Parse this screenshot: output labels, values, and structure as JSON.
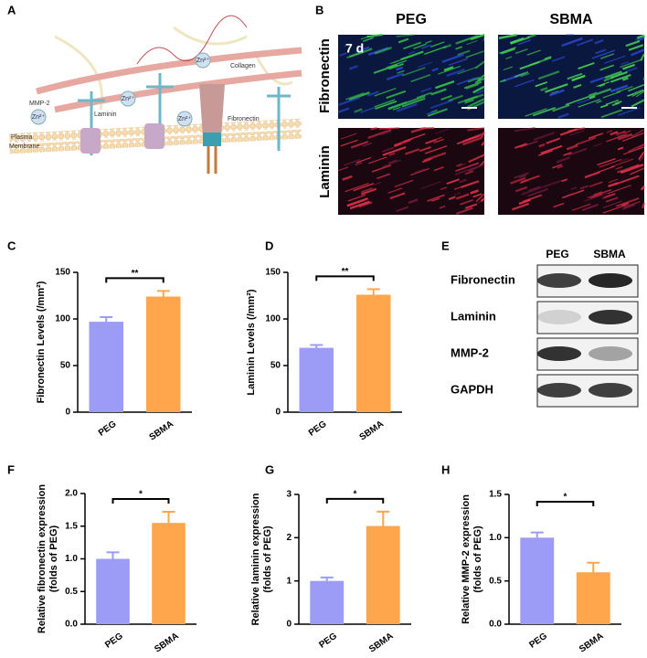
{
  "panels": {
    "A": {
      "label": "A",
      "mmp": "MMP-2",
      "laminin": "Laminin",
      "collagen": "Collagen",
      "fibronectin": "Fibronectin",
      "membrane": [
        "Plasma",
        "Membrane"
      ],
      "ion": "Zn²⁺"
    },
    "B": {
      "label": "B",
      "columns": [
        "PEG",
        "SBMA"
      ],
      "rows": [
        "Fibronectin",
        "Laminin"
      ],
      "time": "7 d"
    },
    "E": {
      "label": "E",
      "columns": [
        "PEG",
        "SBMA"
      ],
      "rows": [
        "Fibronectin",
        "Laminin",
        "MMP-2",
        "GAPDH"
      ]
    }
  },
  "chart_data": [
    {
      "type": "bar",
      "panel": "C",
      "ylabel": [
        "Fibronectin Levels (/mm²)"
      ],
      "categories": [
        "PEG",
        "SBMA"
      ],
      "values": [
        97,
        124
      ],
      "errors": [
        5,
        6
      ],
      "colors": [
        "#9c9cf7",
        "#ffa64d"
      ],
      "ylim": [
        0,
        150
      ],
      "yticks": [
        0,
        50,
        100,
        150
      ],
      "significance": "**"
    },
    {
      "type": "bar",
      "panel": "D",
      "ylabel": [
        "Laminin Levels (/mm²)"
      ],
      "categories": [
        "PEG",
        "SBMA"
      ],
      "values": [
        69,
        126
      ],
      "errors": [
        3,
        6
      ],
      "colors": [
        "#9c9cf7",
        "#ffa64d"
      ],
      "ylim": [
        0,
        150
      ],
      "yticks": [
        0,
        50,
        100,
        150
      ],
      "significance": "**"
    },
    {
      "type": "bar",
      "panel": "F",
      "ylabel": [
        "Relative fibronectin expression",
        "(folds of PEG)"
      ],
      "categories": [
        "PEG",
        "SBMA"
      ],
      "values": [
        1.0,
        1.55
      ],
      "errors": [
        0.1,
        0.17
      ],
      "colors": [
        "#9c9cf7",
        "#ffa64d"
      ],
      "ylim": [
        0,
        2
      ],
      "yticks": [
        {
          "value": 0,
          "label": "0.0"
        },
        0.5,
        {
          "value": 1,
          "label": "1.0"
        },
        1.5,
        {
          "value": 2,
          "label": "2.0"
        }
      ],
      "significance": "*"
    },
    {
      "type": "bar",
      "panel": "G",
      "ylabel": [
        "Relative laminin expression",
        "(folds of PEG)"
      ],
      "categories": [
        "PEG",
        "SBMA"
      ],
      "values": [
        1.0,
        2.27
      ],
      "errors": [
        0.08,
        0.33
      ],
      "colors": [
        "#9c9cf7",
        "#ffa64d"
      ],
      "ylim": [
        0,
        3
      ],
      "yticks": [
        0,
        1,
        2,
        3
      ],
      "significance": "*"
    },
    {
      "type": "bar",
      "panel": "H",
      "ylabel": [
        "Relative MMP-2 expression",
        "(folds of PEG)"
      ],
      "categories": [
        "PEG",
        "SBMA"
      ],
      "values": [
        1.0,
        0.6
      ],
      "errors": [
        0.06,
        0.11
      ],
      "colors": [
        "#9c9cf7",
        "#ffa64d"
      ],
      "ylim": [
        0,
        1.5
      ],
      "yticks": [
        {
          "value": 0,
          "label": "0.0"
        },
        0.5,
        {
          "value": 1,
          "label": "1.0"
        },
        1.5
      ],
      "significance": "*"
    }
  ]
}
